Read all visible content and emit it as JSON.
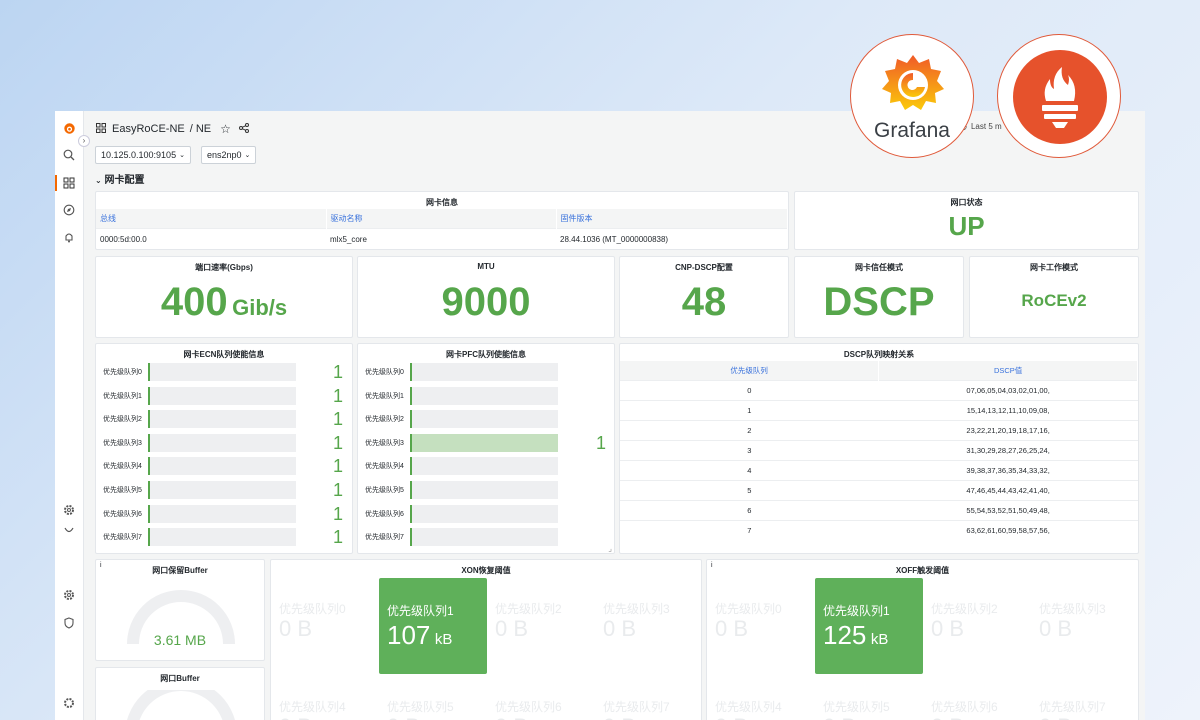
{
  "topbar": {
    "dashboard": "EasyRoCE-NE",
    "folder": "/ NE",
    "time_range": "Last 5 m"
  },
  "variables": [
    {
      "value": "10.125.0.100:9105"
    },
    {
      "value": "ens2np0"
    }
  ],
  "row_title": "网卡配置",
  "nic_info": {
    "title": "网卡信息",
    "columns": [
      "总线",
      "驱动名称",
      "固件版本"
    ],
    "row": [
      "0000:5d:00.0",
      "mlx5_core",
      "28.44.1036 (MT_0000000838)"
    ]
  },
  "port_state": {
    "title": "网口状态",
    "value": "UP"
  },
  "port_speed": {
    "title": "端口速率(Gbps)",
    "value": "400",
    "unit": "Gib/s"
  },
  "mtu": {
    "title": "MTU",
    "value": "9000"
  },
  "cnp_dscp": {
    "title": "CNP-DSCP配置",
    "value": "48"
  },
  "trust_mode": {
    "title": "网卡信任模式",
    "value": "DSCP"
  },
  "work_mode": {
    "title": "网卡工作模式",
    "value": "RoCEv2"
  },
  "ecn": {
    "title": "网卡ECN队列使能信息",
    "rows": [
      {
        "label": "优先级队列0",
        "value": "1",
        "fill": 1
      },
      {
        "label": "优先级队列1",
        "value": "1",
        "fill": 1
      },
      {
        "label": "优先级队列2",
        "value": "1",
        "fill": 1
      },
      {
        "label": "优先级队列3",
        "value": "1",
        "fill": 1
      },
      {
        "label": "优先级队列4",
        "value": "1",
        "fill": 1
      },
      {
        "label": "优先级队列5",
        "value": "1",
        "fill": 1
      },
      {
        "label": "优先级队列6",
        "value": "1",
        "fill": 1
      },
      {
        "label": "优先级队列7",
        "value": "1",
        "fill": 1
      }
    ]
  },
  "pfc": {
    "title": "网卡PFC队列使能信息",
    "rows": [
      {
        "label": "优先级队列0",
        "value": "",
        "fill": 0
      },
      {
        "label": "优先级队列1",
        "value": "",
        "fill": 0
      },
      {
        "label": "优先级队列2",
        "value": "",
        "fill": 0
      },
      {
        "label": "优先级队列3",
        "value": "1",
        "fill": 1
      },
      {
        "label": "优先级队列4",
        "value": "",
        "fill": 0
      },
      {
        "label": "优先级队列5",
        "value": "",
        "fill": 0
      },
      {
        "label": "优先级队列6",
        "value": "",
        "fill": 0
      },
      {
        "label": "优先级队列7",
        "value": "",
        "fill": 0
      }
    ]
  },
  "dscp_map": {
    "title": "DSCP队列映射关系",
    "columns": [
      "优先级队列",
      "DSCP值"
    ],
    "rows": [
      [
        "0",
        "07,06,05,04,03,02,01,00,"
      ],
      [
        "1",
        "15,14,13,12,11,10,09,08,"
      ],
      [
        "2",
        "23,22,21,20,19,18,17,16,"
      ],
      [
        "3",
        "31,30,29,28,27,26,25,24,"
      ],
      [
        "4",
        "39,38,37,36,35,34,33,32,"
      ],
      [
        "5",
        "47,46,45,44,43,42,41,40,"
      ],
      [
        "6",
        "55,54,53,52,51,50,49,48,"
      ],
      [
        "7",
        "63,62,61,60,59,58,57,56,"
      ]
    ]
  },
  "reserved_buffer": {
    "title": "网口保留Buffer",
    "value": "3.61 MB",
    "info": "i",
    "level": 0.5
  },
  "port_buffer": {
    "title": "网口Buffer"
  },
  "xon": {
    "title": "XON恢复阈值",
    "info": "",
    "highlight_label": "优先级队列1",
    "highlight_value": "107",
    "highlight_unit": "kB",
    "ghost_labels": [
      "优先级队列0",
      "优先级队列2",
      "优先级队列3",
      "优先级队列4",
      "优先级队列5",
      "优先级队列6",
      "优先级队列7"
    ],
    "ghost_value": "0 B"
  },
  "xoff": {
    "title": "XOFF触发阈值",
    "info": "i",
    "highlight_label": "优先级队列1",
    "highlight_value": "125",
    "highlight_unit": "kB",
    "ghost_labels": [
      "优先级队列0",
      "优先级队列2",
      "优先级队列3",
      "优先级队列4",
      "优先级队列5",
      "优先级队列6",
      "优先级队列7"
    ],
    "ghost_value": "0 B"
  },
  "logos": {
    "grafana": "Grafana",
    "prometheus": "prometheus-logo"
  },
  "colors": {
    "green": "#56a64b",
    "blue": "#3871dc",
    "grafana_orange": "#f46800",
    "prometheus_red": "#e6522c"
  }
}
